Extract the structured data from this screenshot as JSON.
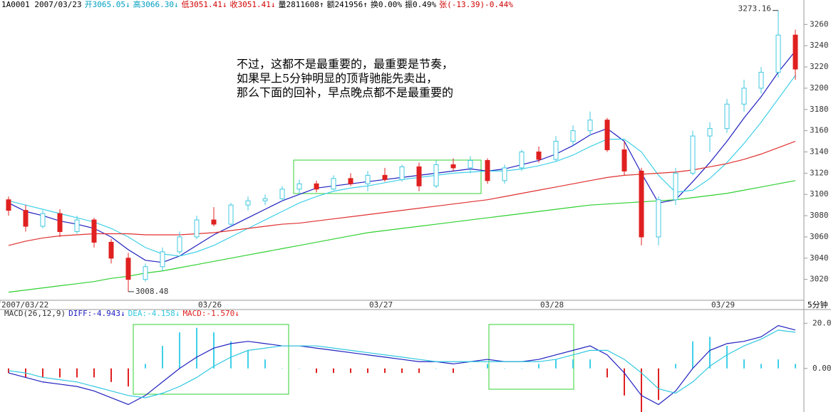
{
  "chart_data": [
    {
      "type": "candlestick",
      "header": [
        {
          "text": "1A0001 2007/03/23",
          "color": "#000000"
        },
        {
          "text": "开3065.05↓",
          "color": "#00a0c0"
        },
        {
          "text": "高3066.30↓",
          "color": "#00a0c0"
        },
        {
          "text": "低3051.41↓",
          "color": "#d00000"
        },
        {
          "text": "收3051.41↓",
          "color": "#d00000"
        },
        {
          "text": "量2811608↑",
          "color": "#000000"
        },
        {
          "text": "额241956↑",
          "color": "#000000"
        },
        {
          "text": "换0.00%",
          "color": "#000000"
        },
        {
          "text": "振0.49%",
          "color": "#000000"
        },
        {
          "text": "张(-13.39)-0.44%",
          "color": "#d00000"
        }
      ],
      "annotation": [
        "不过，这都不是最重要的，最重要是节奏，",
        "如果早上5分钟明显的顶背驰能先卖出，",
        "那么下面的回补，早点晚点都不是最重要的"
      ],
      "x_label": "5分钟",
      "categories": [
        "2007/03/22",
        null,
        null,
        null,
        null,
        null,
        null,
        null,
        null,
        null,
        null,
        null,
        "03/26",
        null,
        null,
        null,
        null,
        null,
        null,
        null,
        null,
        null,
        "03/27",
        null,
        null,
        null,
        null,
        null,
        null,
        null,
        null,
        null,
        "03/28",
        null,
        null,
        null,
        null,
        null,
        null,
        null,
        null,
        null,
        "03/29",
        null,
        null,
        null,
        null
      ],
      "open": [
        3095,
        3085,
        3070,
        3082,
        3065,
        3076,
        3055,
        3040,
        3020,
        3032,
        3046,
        3060,
        3076,
        3072,
        3090,
        3094,
        3096,
        3105,
        3110,
        3105,
        3115,
        3110,
        3118,
        3114,
        3126,
        3108,
        3128,
        3125,
        3132,
        3113,
        3125,
        3140,
        3133,
        3150,
        3160,
        3170,
        3142,
        3122,
        3060,
        3095,
        3120,
        3155,
        3162,
        3185,
        3200,
        3215,
        3250
      ],
      "high": [
        3098,
        3090,
        3085,
        3086,
        3080,
        3078,
        3058,
        3045,
        3035,
        3050,
        3065,
        3080,
        3088,
        3092,
        3098,
        3100,
        3108,
        3114,
        3113,
        3118,
        3120,
        3122,
        3125,
        3128,
        3130,
        3132,
        3134,
        3136,
        3134,
        3128,
        3142,
        3145,
        3155,
        3165,
        3178,
        3172,
        3150,
        3125,
        3098,
        3125,
        3160,
        3168,
        3190,
        3208,
        3220,
        3273.16,
        3255
      ],
      "low": [
        3080,
        3065,
        3068,
        3060,
        3063,
        3050,
        3035,
        3008.48,
        3018,
        3028,
        3044,
        3058,
        3070,
        3070,
        3085,
        3090,
        3094,
        3100,
        3102,
        3104,
        3108,
        3103,
        3112,
        3112,
        3103,
        3106,
        3122,
        3120,
        3110,
        3110,
        3122,
        3130,
        3131,
        3146,
        3155,
        3140,
        3118,
        3052,
        3052,
        3090,
        3118,
        3140,
        3158,
        3178,
        3195,
        3210,
        3208
      ],
      "close": [
        3085,
        3070,
        3082,
        3065,
        3076,
        3055,
        3040,
        3020,
        3032,
        3046,
        3060,
        3076,
        3072,
        3090,
        3094,
        3096,
        3105,
        3110,
        3105,
        3115,
        3110,
        3118,
        3114,
        3126,
        3108,
        3128,
        3125,
        3132,
        3113,
        3125,
        3140,
        3133,
        3150,
        3160,
        3170,
        3142,
        3122,
        3060,
        3095,
        3120,
        3155,
        3162,
        3185,
        3200,
        3215,
        3250,
        3218
      ],
      "up_color": "#40c8e0",
      "down_color": "#e02020",
      "series": [
        {
          "color": "#2020c0",
          "values": [
            3092,
            3084,
            3080,
            3075,
            3072,
            3068,
            3060,
            3048,
            3038,
            3036,
            3042,
            3052,
            3062,
            3070,
            3078,
            3086,
            3094,
            3100,
            3106,
            3108,
            3110,
            3112,
            3114,
            3116,
            3118,
            3120,
            3122,
            3124,
            3122,
            3124,
            3128,
            3132,
            3138,
            3146,
            3156,
            3162,
            3150,
            3120,
            3092,
            3095,
            3112,
            3130,
            3150,
            3172,
            3192,
            3215,
            3235
          ]
        },
        {
          "color": "#40d0e8",
          "values": [
            3094,
            3090,
            3086,
            3082,
            3078,
            3074,
            3068,
            3060,
            3050,
            3044,
            3042,
            3046,
            3052,
            3060,
            3068,
            3076,
            3084,
            3092,
            3098,
            3103,
            3106,
            3108,
            3111,
            3114,
            3116,
            3118,
            3120,
            3121,
            3122,
            3122,
            3124,
            3127,
            3131,
            3137,
            3145,
            3152,
            3152,
            3140,
            3118,
            3102,
            3104,
            3115,
            3130,
            3148,
            3168,
            3190,
            3212
          ]
        },
        {
          "color": "#e03030",
          "values": [
            3052,
            3056,
            3059,
            3061,
            3062,
            3063,
            3063,
            3063,
            3062,
            3062,
            3062,
            3063,
            3064,
            3066,
            3068,
            3070,
            3072,
            3073,
            3075,
            3077,
            3079,
            3081,
            3083,
            3085,
            3087,
            3089,
            3091,
            3093,
            3095,
            3098,
            3101,
            3104,
            3107,
            3110,
            3113,
            3116,
            3118,
            3119,
            3120,
            3121,
            3123,
            3126,
            3129,
            3133,
            3138,
            3144,
            3150
          ]
        },
        {
          "color": "#30d030",
          "values": [
            3008,
            3010,
            3012,
            3014,
            3016,
            3018,
            3021,
            3023,
            3026,
            3028,
            3031,
            3034,
            3037,
            3040,
            3043,
            3046,
            3049,
            3052,
            3055,
            3058,
            3061,
            3064,
            3066,
            3068,
            3070,
            3072,
            3074,
            3076,
            3078,
            3080,
            3082,
            3084,
            3086,
            3088,
            3090,
            3091,
            3092,
            3093,
            3094,
            3095,
            3097,
            3099,
            3101,
            3104,
            3107,
            3110,
            3113
          ]
        }
      ],
      "ylim": [
        2993,
        3283
      ],
      "yticks": [
        3020,
        3040,
        3060,
        3080,
        3100,
        3120,
        3140,
        3160,
        3180,
        3200,
        3220,
        3240,
        3260
      ]
    },
    {
      "type": "macd",
      "title": "MACD(26,12,9)",
      "series": [
        {
          "name": "DIFF:-4.943↓",
          "color": "#2020c0",
          "values": [
            -2,
            -4,
            -6,
            -7,
            -8,
            -10,
            -13,
            -16,
            -12,
            -6,
            0,
            5,
            9,
            11,
            12,
            11,
            10,
            10,
            9,
            8,
            7,
            6,
            5,
            4,
            3,
            3,
            2,
            3,
            4,
            3,
            3,
            4,
            6,
            8,
            10,
            6,
            -2,
            -12,
            -16,
            -10,
            0,
            8,
            11,
            12,
            14,
            19,
            17
          ]
        },
        {
          "name": "DEA:-4.158↓",
          "color": "#30c8e0",
          "values": [
            -1,
            -2,
            -4,
            -5,
            -6,
            -8,
            -10,
            -12,
            -13,
            -11,
            -8,
            -4,
            1,
            5,
            8,
            9,
            10,
            10,
            10,
            9,
            8,
            7,
            6,
            5,
            4,
            3,
            3,
            3,
            3,
            3,
            3,
            3,
            4,
            6,
            8,
            8,
            4,
            -2,
            -9,
            -11,
            -6,
            1,
            6,
            10,
            13,
            17,
            16
          ]
        }
      ],
      "bars": {
        "name": "MACD:-1.570↓",
        "up_color": "#40d0e8",
        "down_color": "#e02020",
        "values": [
          -2,
          -4,
          -4,
          -4,
          -4,
          -4,
          -6,
          -8,
          2,
          10,
          16,
          18,
          16,
          12,
          8,
          4,
          0,
          0,
          -2,
          -2,
          -2,
          -2,
          -2,
          -2,
          -2,
          0,
          -2,
          0,
          2,
          0,
          0,
          2,
          4,
          4,
          4,
          -4,
          -12,
          -20,
          -14,
          2,
          12,
          14,
          10,
          4,
          2,
          4,
          2
        ]
      },
      "ylim": [
        -19,
        22
      ],
      "yticks": [
        {
          "value": 0,
          "label": "0.00"
        },
        {
          "value": 20,
          "label": "20.00"
        }
      ]
    }
  ]
}
